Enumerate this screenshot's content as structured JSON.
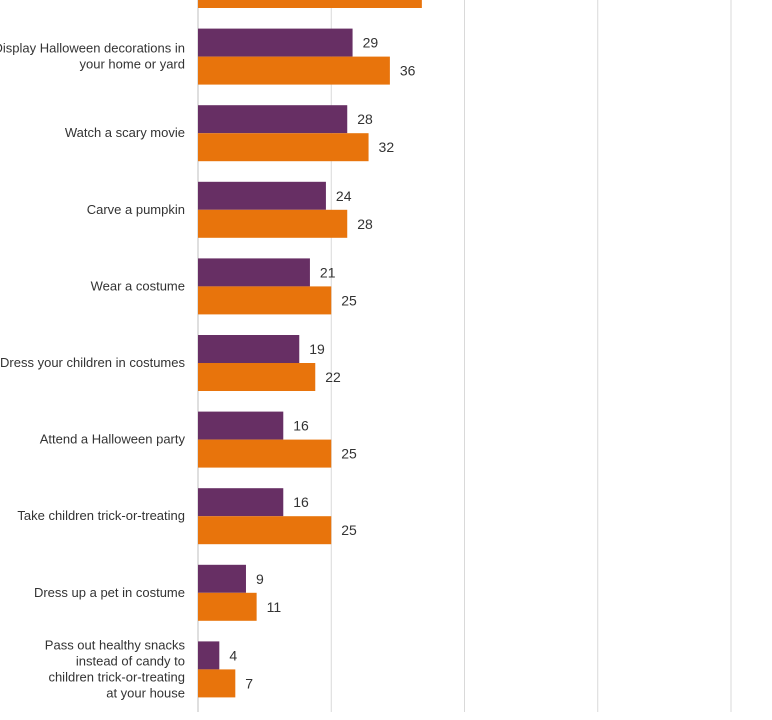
{
  "chart_data": {
    "type": "bar",
    "orientation": "horizontal",
    "categories": [
      "",
      "Display Halloween decorations in your home or yard",
      "Watch a scary movie",
      "Carve a pumpkin",
      "Wear a costume",
      "Dress your children in costumes",
      "Attend a Halloween party",
      "Take children trick-or-treating",
      "Dress up a pet in costume",
      "Pass out healthy snacks instead of candy to children trick-or-treating at your house"
    ],
    "series": [
      {
        "color": "#672f64",
        "values": [
          null,
          29,
          28,
          24,
          21,
          19,
          16,
          16,
          9,
          4
        ]
      },
      {
        "color": "#e8740c",
        "values": [
          42,
          36,
          32,
          28,
          25,
          22,
          25,
          25,
          11,
          7
        ]
      }
    ],
    "xlim": [
      0,
      100
    ],
    "xticks": [
      0,
      25,
      50,
      75,
      100
    ],
    "grid": true,
    "title": "",
    "xlabel": "",
    "ylabel": ""
  }
}
